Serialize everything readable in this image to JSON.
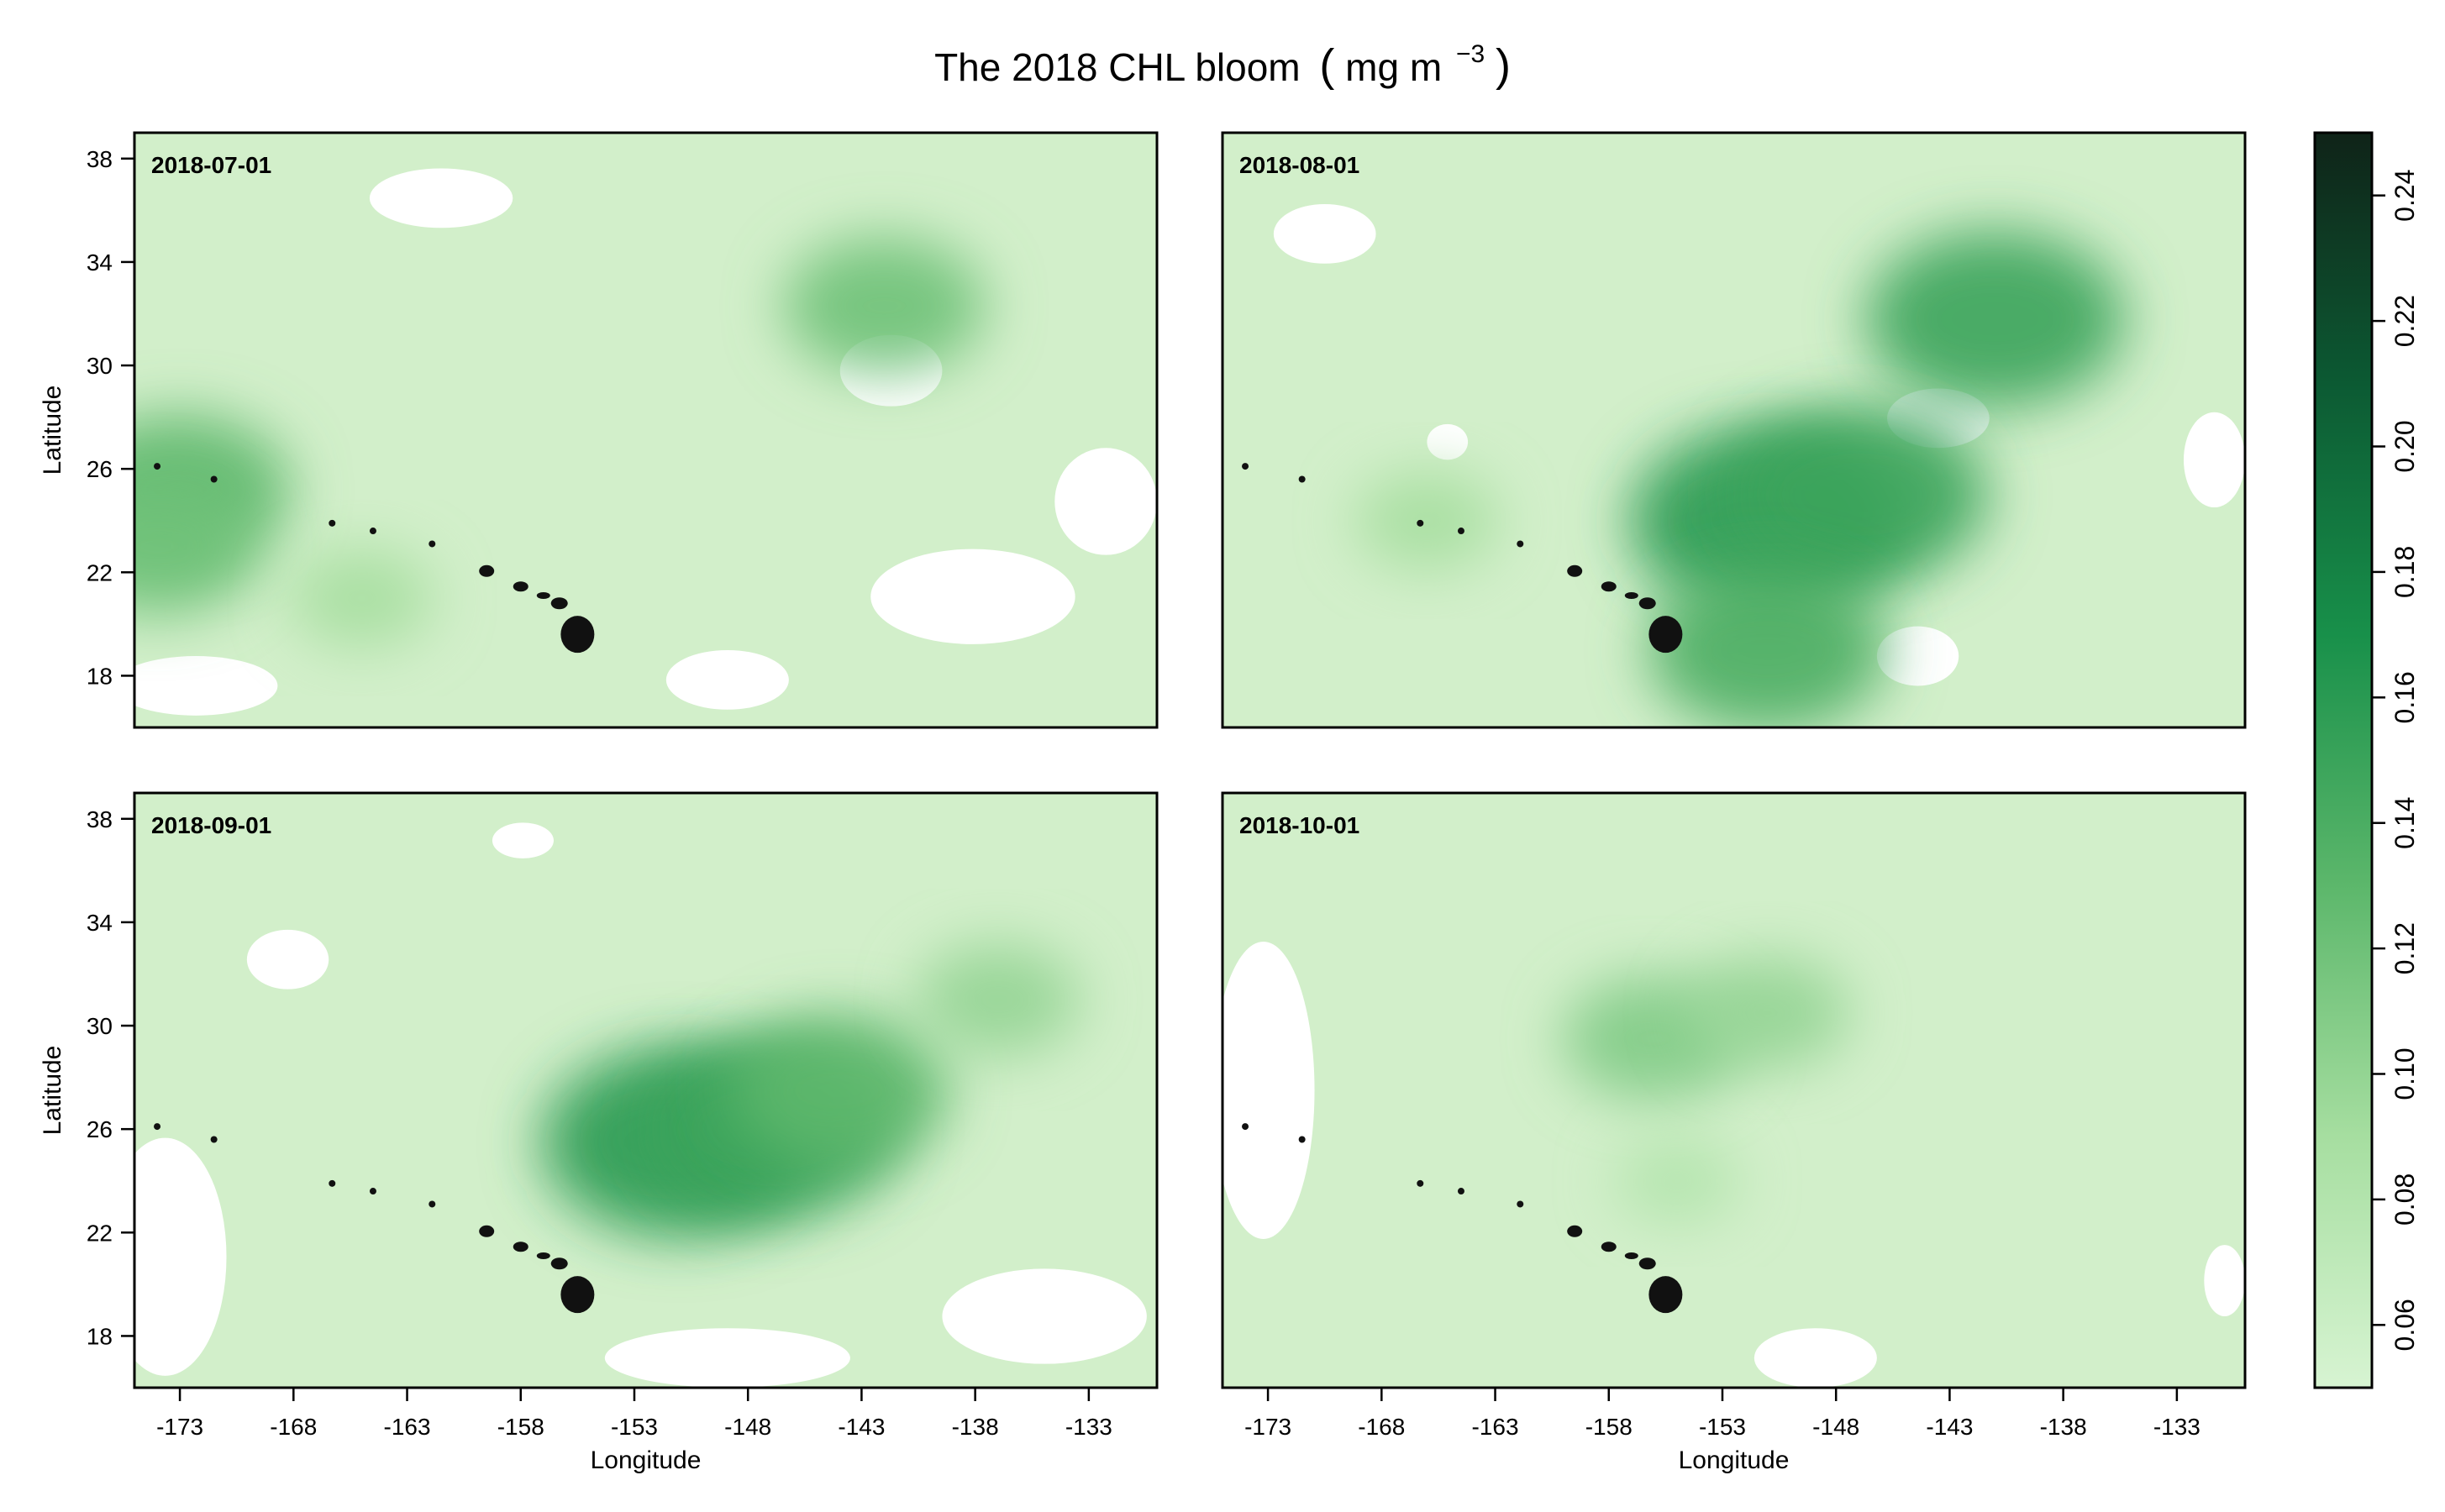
{
  "title": "The 2018 CHL bloom",
  "title_unit": "mg m",
  "title_unit_exp": "−3",
  "chart_data": [
    {
      "type": "heatmap",
      "panel_label": "2018-07-01",
      "xlabel": "",
      "ylabel": "Latitude",
      "xlim": [
        -175,
        -130
      ],
      "ylim": [
        16,
        39
      ],
      "x_ticks": [],
      "y_ticks": [
        18,
        22,
        26,
        30,
        34,
        38
      ],
      "blooms": [
        {
          "lon": -142,
          "lat": 32.3,
          "value": 0.12
        },
        {
          "lon": -173,
          "lat": 25.2,
          "value": 0.13
        },
        {
          "lon": -174,
          "lat": 23.0,
          "value": 0.12
        },
        {
          "lon": -165,
          "lat": 21.0,
          "value": 0.09
        }
      ]
    },
    {
      "type": "heatmap",
      "panel_label": "2018-08-01",
      "xlabel": "",
      "ylabel": "",
      "xlim": [
        -175,
        -130
      ],
      "ylim": [
        16,
        39
      ],
      "x_ticks": [],
      "y_ticks": [],
      "blooms": [
        {
          "lon": -141,
          "lat": 31.8,
          "value": 0.15
        },
        {
          "lon": -151,
          "lat": 24.0,
          "value": 0.16
        },
        {
          "lon": -147,
          "lat": 25.0,
          "value": 0.15
        },
        {
          "lon": -151,
          "lat": 19.0,
          "value": 0.14
        },
        {
          "lon": -166,
          "lat": 24.0,
          "value": 0.09
        }
      ]
    },
    {
      "type": "heatmap",
      "panel_label": "2018-09-01",
      "xlabel": "Longitude",
      "ylabel": "Latitude",
      "xlim": [
        -175,
        -130
      ],
      "ylim": [
        16,
        39
      ],
      "x_ticks": [
        -173,
        -168,
        -163,
        -158,
        -153,
        -148,
        -143,
        -138,
        -133
      ],
      "y_ticks": [
        18,
        22,
        26,
        30,
        34,
        38
      ],
      "blooms": [
        {
          "lon": -151,
          "lat": 25.5,
          "value": 0.16
        },
        {
          "lon": -147,
          "lat": 26.0,
          "value": 0.15
        },
        {
          "lon": -144,
          "lat": 27.5,
          "value": 0.13
        },
        {
          "lon": -137,
          "lat": 31.0,
          "value": 0.1
        }
      ]
    },
    {
      "type": "heatmap",
      "panel_label": "2018-10-01",
      "xlabel": "Longitude",
      "ylabel": "",
      "xlim": [
        -175,
        -130
      ],
      "ylim": [
        16,
        39
      ],
      "x_ticks": [
        -173,
        -168,
        -163,
        -158,
        -153,
        -148,
        -143,
        -138,
        -133
      ],
      "y_ticks": [],
      "blooms": [
        {
          "lon": -156,
          "lat": 29.5,
          "value": 0.11
        },
        {
          "lon": -151,
          "lat": 30.5,
          "value": 0.1
        },
        {
          "lon": -155,
          "lat": 24.0,
          "value": 0.08
        }
      ]
    }
  ],
  "colorbar": {
    "vmin": 0.05,
    "vmax": 0.25,
    "ticks": [
      "0.06",
      "0.08",
      "0.10",
      "0.12",
      "0.14",
      "0.16",
      "0.18",
      "0.20",
      "0.22",
      "0.24"
    ],
    "colors": [
      "#d7f4d2",
      "#a6dea0",
      "#5cb76b",
      "#18904a",
      "#0c5a33",
      "#0f2318"
    ]
  },
  "colors": {
    "base": "#d2efca",
    "land": "#111111",
    "missing": "#ffffff"
  }
}
